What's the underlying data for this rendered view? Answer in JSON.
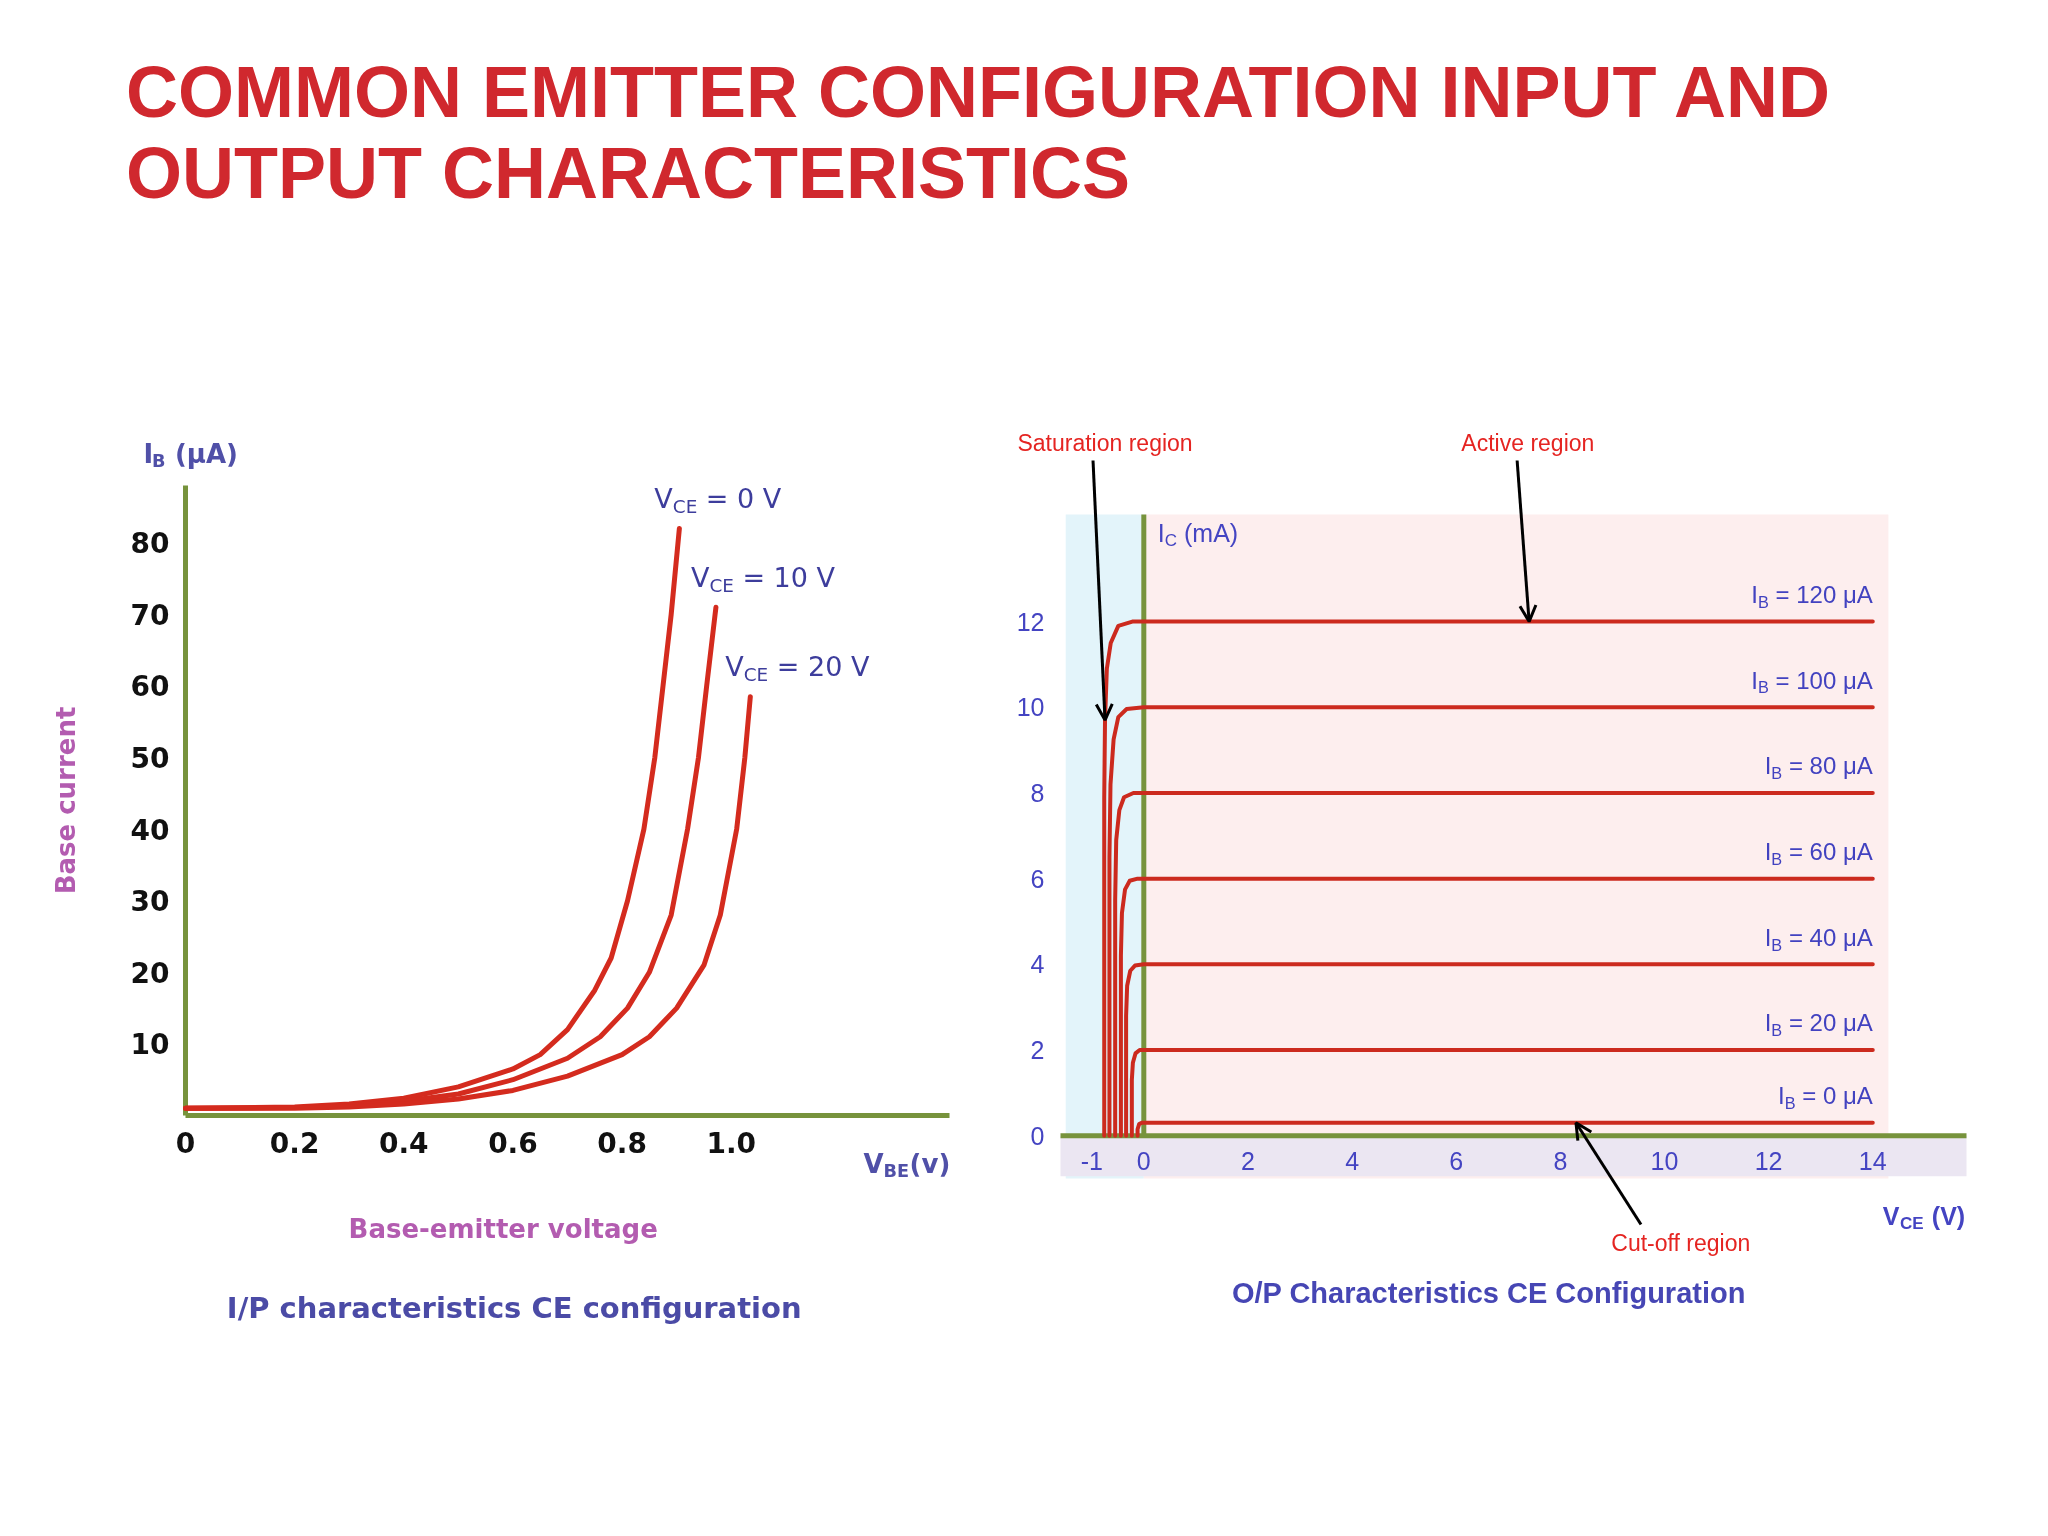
{
  "chart_data": [
    {
      "type": "line",
      "title": "COMMON EMITTER CONFIGURATION INPUT AND OUTPUT CHARACTERISTICS",
      "subtitle": "I/P characteristics CE configuration",
      "xlabel": "V$_{BE}$(v)",
      "ylabel": "I$_{B}$ (μA)",
      "annotations": [
        "Base-emitter voltage",
        "Base current"
      ],
      "xlim": [
        0,
        1.4
      ],
      "ylim": [
        0,
        88
      ],
      "xticks": [
        0,
        0.2,
        0.4,
        0.6,
        0.8,
        {
          "value": 1,
          "label": "1.0"
        }
      ],
      "yticks": [
        10,
        20,
        30,
        40,
        50,
        60,
        70,
        80
      ],
      "series": [
        {
          "name": "V$_{CE}$ = 0 V",
          "color": "#d42b1e",
          "x": [
            0,
            0.2,
            0.3,
            0.4,
            0.5,
            0.6,
            0.65,
            0.7,
            0.75,
            0.78,
            0.81,
            0.84,
            0.86,
            0.875,
            0.89,
            0.905
          ],
          "values": [
            1,
            1.2,
            1.6,
            2.4,
            4,
            6.5,
            8.5,
            12,
            17.5,
            22,
            30,
            40,
            50,
            60,
            70,
            82
          ]
        },
        {
          "name": "V$_{CE}$ = 10 V",
          "color": "#d42b1e",
          "x": [
            0,
            0.2,
            0.3,
            0.4,
            0.5,
            0.6,
            0.7,
            0.76,
            0.81,
            0.85,
            0.89,
            0.92,
            0.94,
            0.955,
            0.972
          ],
          "values": [
            1,
            1.1,
            1.4,
            2,
            3,
            5,
            8,
            11,
            15,
            20,
            28,
            40,
            50,
            60,
            71
          ]
        },
        {
          "name": "V$_{CE}$ = 20 V",
          "color": "#d42b1e",
          "x": [
            0,
            0.2,
            0.3,
            0.4,
            0.5,
            0.6,
            0.7,
            0.8,
            0.85,
            0.9,
            0.95,
            0.98,
            1.01,
            1.025,
            1.035
          ],
          "values": [
            1,
            1,
            1.2,
            1.6,
            2.3,
            3.5,
            5.5,
            8.5,
            11,
            15,
            21,
            28,
            40,
            50,
            58.5
          ]
        }
      ]
    },
    {
      "type": "line",
      "subtitle": "O/P Characteristics CE Configuration",
      "xlabel": "V$_{CE}$ (V)",
      "ylabel": "I$_{C}$ (mA)",
      "xlim": [
        -1.6,
        15.8
      ],
      "ylim": [
        -1,
        14.5
      ],
      "xticks": [
        -1,
        0,
        2,
        4,
        6,
        8,
        10,
        12,
        14
      ],
      "yticks": [
        0,
        2,
        4,
        6,
        8,
        10,
        12
      ],
      "bands": [
        {
          "axis": "x",
          "from": -1.5,
          "to": 0,
          "color": "#e3f4fa"
        },
        {
          "axis": "x",
          "from": 0,
          "to": 14.3,
          "color": "#fdeeee"
        },
        {
          "axis": "y",
          "from": -0.95,
          "to": 0,
          "color": "#ebe6f2"
        }
      ],
      "annotations": [
        {
          "text": "Saturation region",
          "x": -0.745,
          "y": 9.7
        },
        {
          "text": "Active region",
          "x": 7.4,
          "y": 12
        },
        {
          "text": "Cut-off region",
          "x": 8.3,
          "y": 0.3
        }
      ],
      "series": [
        {
          "name": "I$_{B}$ = 120 μA",
          "color": "#cc2a1e",
          "x": [
            -0.76,
            -0.76,
            -0.745,
            -0.71,
            -0.635,
            -0.49,
            -0.22,
            0,
            14
          ],
          "values": [
            0,
            7.9,
            9.7,
            10.9,
            11.5,
            11.9,
            12,
            12,
            12
          ]
        },
        {
          "name": "I$_{B}$ = 100 μA",
          "color": "#cc2a1e",
          "x": [
            -0.66,
            -0.66,
            -0.64,
            -0.58,
            -0.49,
            -0.33,
            0,
            14
          ],
          "values": [
            0,
            6.5,
            8.2,
            9.25,
            9.77,
            9.96,
            10,
            10
          ]
        },
        {
          "name": "I$_{B}$ = 80 μA",
          "color": "#cc2a1e",
          "x": [
            -0.55,
            -0.55,
            -0.53,
            -0.47,
            -0.38,
            -0.2,
            0,
            14
          ],
          "values": [
            0,
            5.5,
            6.9,
            7.6,
            7.9,
            8,
            8,
            8
          ]
        },
        {
          "name": "I$_{B}$ = 60 μA",
          "color": "#cc2a1e",
          "x": [
            -0.44,
            -0.44,
            -0.42,
            -0.36,
            -0.27,
            -0.12,
            0,
            14
          ],
          "values": [
            0,
            4.2,
            5.2,
            5.75,
            5.95,
            6,
            6,
            6
          ]
        },
        {
          "name": "I$_{B}$ = 40 μA",
          "color": "#cc2a1e",
          "x": [
            -0.34,
            -0.34,
            -0.32,
            -0.26,
            -0.17,
            0,
            14
          ],
          "values": [
            0,
            2.8,
            3.5,
            3.85,
            3.97,
            4,
            4
          ]
        },
        {
          "name": "I$_{B}$ = 20 μA",
          "color": "#cc2a1e",
          "x": [
            -0.23,
            -0.23,
            -0.21,
            -0.16,
            -0.08,
            0,
            14
          ],
          "values": [
            0,
            1.3,
            1.7,
            1.92,
            2,
            2,
            2
          ]
        },
        {
          "name": "I$_{B}$ = 0 μA",
          "color": "#cc2a1e",
          "x": [
            -0.12,
            -0.12,
            -0.09,
            -0.04,
            0,
            14
          ],
          "values": [
            0,
            0.15,
            0.27,
            0.3,
            0.3,
            0.3
          ]
        }
      ]
    }
  ]
}
